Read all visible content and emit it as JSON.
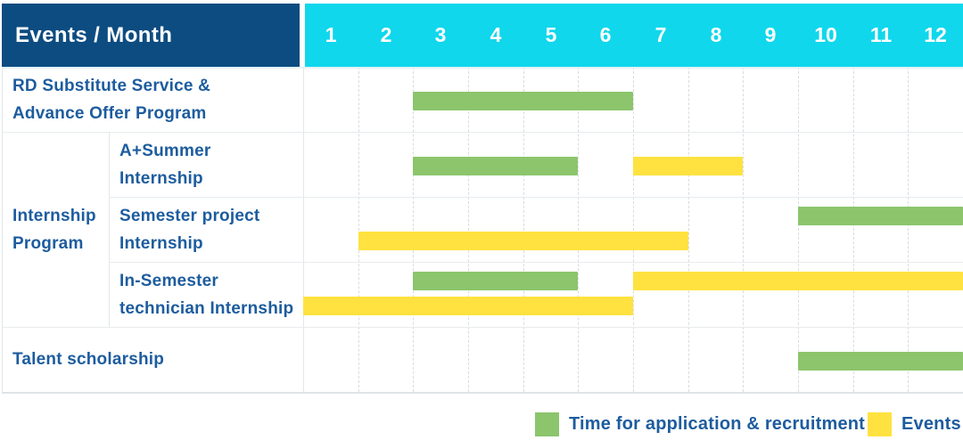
{
  "title": "Events / Month",
  "months": [
    "1",
    "2",
    "3",
    "4",
    "5",
    "6",
    "7",
    "8",
    "9",
    "10",
    "11",
    "12"
  ],
  "colors": {
    "header_navy": "#0d4c81",
    "header_cyan": "#10d7ec",
    "application_recruitment": "#8cc56c",
    "events": "#ffe240",
    "label_text": "#1d5c9e",
    "grid_line": "#e2e6ea",
    "header_divider": "#e2f1f7",
    "row_divider": "#e8ebee"
  },
  "chart_data": {
    "type": "gantt",
    "x_unit": "month",
    "x_range": [
      1,
      12
    ],
    "x_ticks": [
      1,
      2,
      3,
      4,
      5,
      6,
      7,
      8,
      9,
      10,
      11,
      12
    ],
    "grid": true,
    "legend_position": "bottom-right",
    "row_groups": [
      {
        "label": "RD Substitute Service & Advance Offer Program",
        "label_lines": [
          "RD Substitute Service &",
          "Advance Offer Program"
        ],
        "bars": [
          {
            "kind": "application_recruitment",
            "start_month": 3,
            "end_month": 6,
            "lane": "center"
          }
        ]
      },
      {
        "label": "Internship Program",
        "label_lines": [
          "Internship",
          "Program"
        ],
        "sub_rows": [
          {
            "label": "A+Summer Internship",
            "label_lines": [
              "A+Summer",
              "Internship"
            ],
            "bars": [
              {
                "kind": "application_recruitment",
                "start_month": 3,
                "end_month": 5,
                "lane": "center"
              },
              {
                "kind": "events",
                "start_month": 7,
                "end_month": 8,
                "lane": "center"
              }
            ]
          },
          {
            "label": "Semester project Internship",
            "label_lines": [
              "Semester project",
              "Internship"
            ],
            "bars": [
              {
                "kind": "application_recruitment",
                "start_month": 10,
                "end_month": 12,
                "lane": "upper"
              },
              {
                "kind": "events",
                "start_month": 2,
                "end_month": 7,
                "lane": "lower"
              }
            ]
          },
          {
            "label": "In-Semester technician Internship",
            "label_lines": [
              "In-Semester",
              "technician Internship"
            ],
            "bars": [
              {
                "kind": "application_recruitment",
                "start_month": 3,
                "end_month": 5,
                "lane": "upper"
              },
              {
                "kind": "events",
                "start_month": 7,
                "end_month": 12,
                "lane": "upper"
              },
              {
                "kind": "events",
                "start_month": 1,
                "end_month": 6,
                "lane": "lower"
              }
            ]
          }
        ]
      },
      {
        "label": "Talent scholarship",
        "label_lines": [
          "Talent scholarship"
        ],
        "bars": [
          {
            "kind": "application_recruitment",
            "start_month": 10,
            "end_month": 12,
            "lane": "center"
          }
        ]
      }
    ],
    "legend": [
      {
        "key": "application_recruitment",
        "label": "Time for application & recruitment"
      },
      {
        "key": "events",
        "label": "Events"
      }
    ]
  }
}
